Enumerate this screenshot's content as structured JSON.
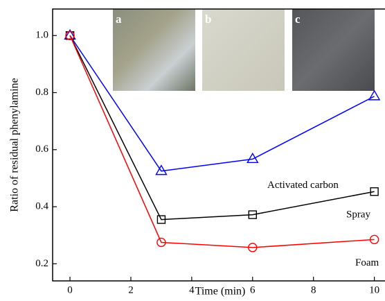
{
  "chart_data": {
    "type": "line",
    "x_label": "Time (min)",
    "y_label": "Ratio of residual phenylamine",
    "x": [
      0,
      3,
      6,
      10
    ],
    "series": [
      {
        "name": "Activated carbon",
        "color": "#0000ff",
        "marker": "triangle",
        "values": [
          1.0,
          0.525,
          0.567,
          0.787
        ]
      },
      {
        "name": "Spray",
        "color": "#000000",
        "marker": "square",
        "values": [
          1.0,
          0.355,
          0.372,
          0.453
        ]
      },
      {
        "name": "Foam",
        "color": "#ff0000",
        "marker": "circle",
        "values": [
          1.0,
          0.275,
          0.257,
          0.285
        ]
      }
    ],
    "xlim": [
      -0.57,
      10.35
    ],
    "xticks": [
      0,
      2,
      4,
      6,
      8,
      10
    ],
    "ylim": [
      0.14,
      1.093
    ],
    "yticks": [
      {
        "value": 0.2,
        "label": "0.2"
      },
      {
        "value": 0.4,
        "label": "0.4"
      },
      {
        "value": 0.6,
        "label": "0.6"
      },
      {
        "value": 0.8,
        "label": "0.8"
      },
      {
        "value": 1.0,
        "label": "1.0"
      }
    ],
    "insets": [
      "a",
      "b",
      "c"
    ]
  }
}
